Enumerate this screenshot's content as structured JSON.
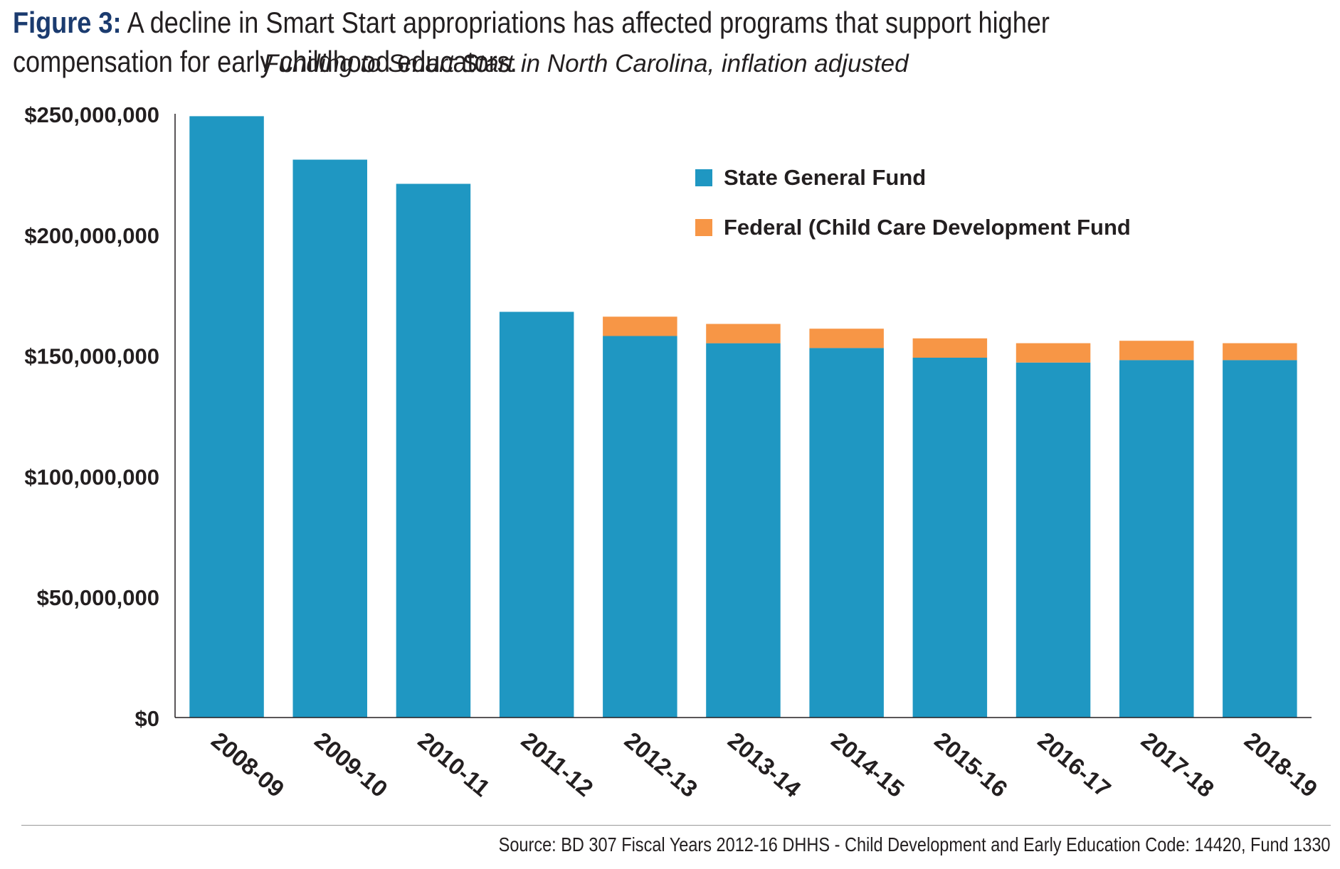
{
  "figure_label": "Figure 3:",
  "title": "A decline in Smart Start appropriations has affected programs that support higher compensation for early childhood educators.",
  "subtitle": "Funding to Smart Start in North Carolina, inflation adjusted",
  "source": "Source: BD 307 Fiscal Years 2012-16 DHHS - Child Development and Early Education Code: 14420, Fund 1330",
  "colors": {
    "state": "#1f97c2",
    "federal": "#f79646",
    "axis": "#231f20"
  },
  "chart_data": {
    "type": "bar",
    "stacked": true,
    "categories": [
      "2008-09",
      "2009-10",
      "2010-11",
      "2011-12",
      "2012-13",
      "2013-14",
      "2014-15",
      "2015-16",
      "2016-17",
      "2017-18",
      "2018-19"
    ],
    "series": [
      {
        "name": "State General Fund",
        "values": [
          249000000,
          231000000,
          221000000,
          168000000,
          158000000,
          155000000,
          153000000,
          149000000,
          147000000,
          148000000,
          148000000
        ]
      },
      {
        "name": "Federal (Child Care Development Fund",
        "values": [
          0,
          0,
          0,
          0,
          8000000,
          8000000,
          8000000,
          8000000,
          8000000,
          8000000,
          7000000
        ]
      }
    ],
    "yticks": [
      "$0",
      "$50,000,000",
      "$100,000,000",
      "$150,000,000",
      "$200,000,000",
      "$250,000,000"
    ],
    "ylim": [
      0,
      250000000
    ],
    "legend_position": "top-right",
    "grid": false
  }
}
